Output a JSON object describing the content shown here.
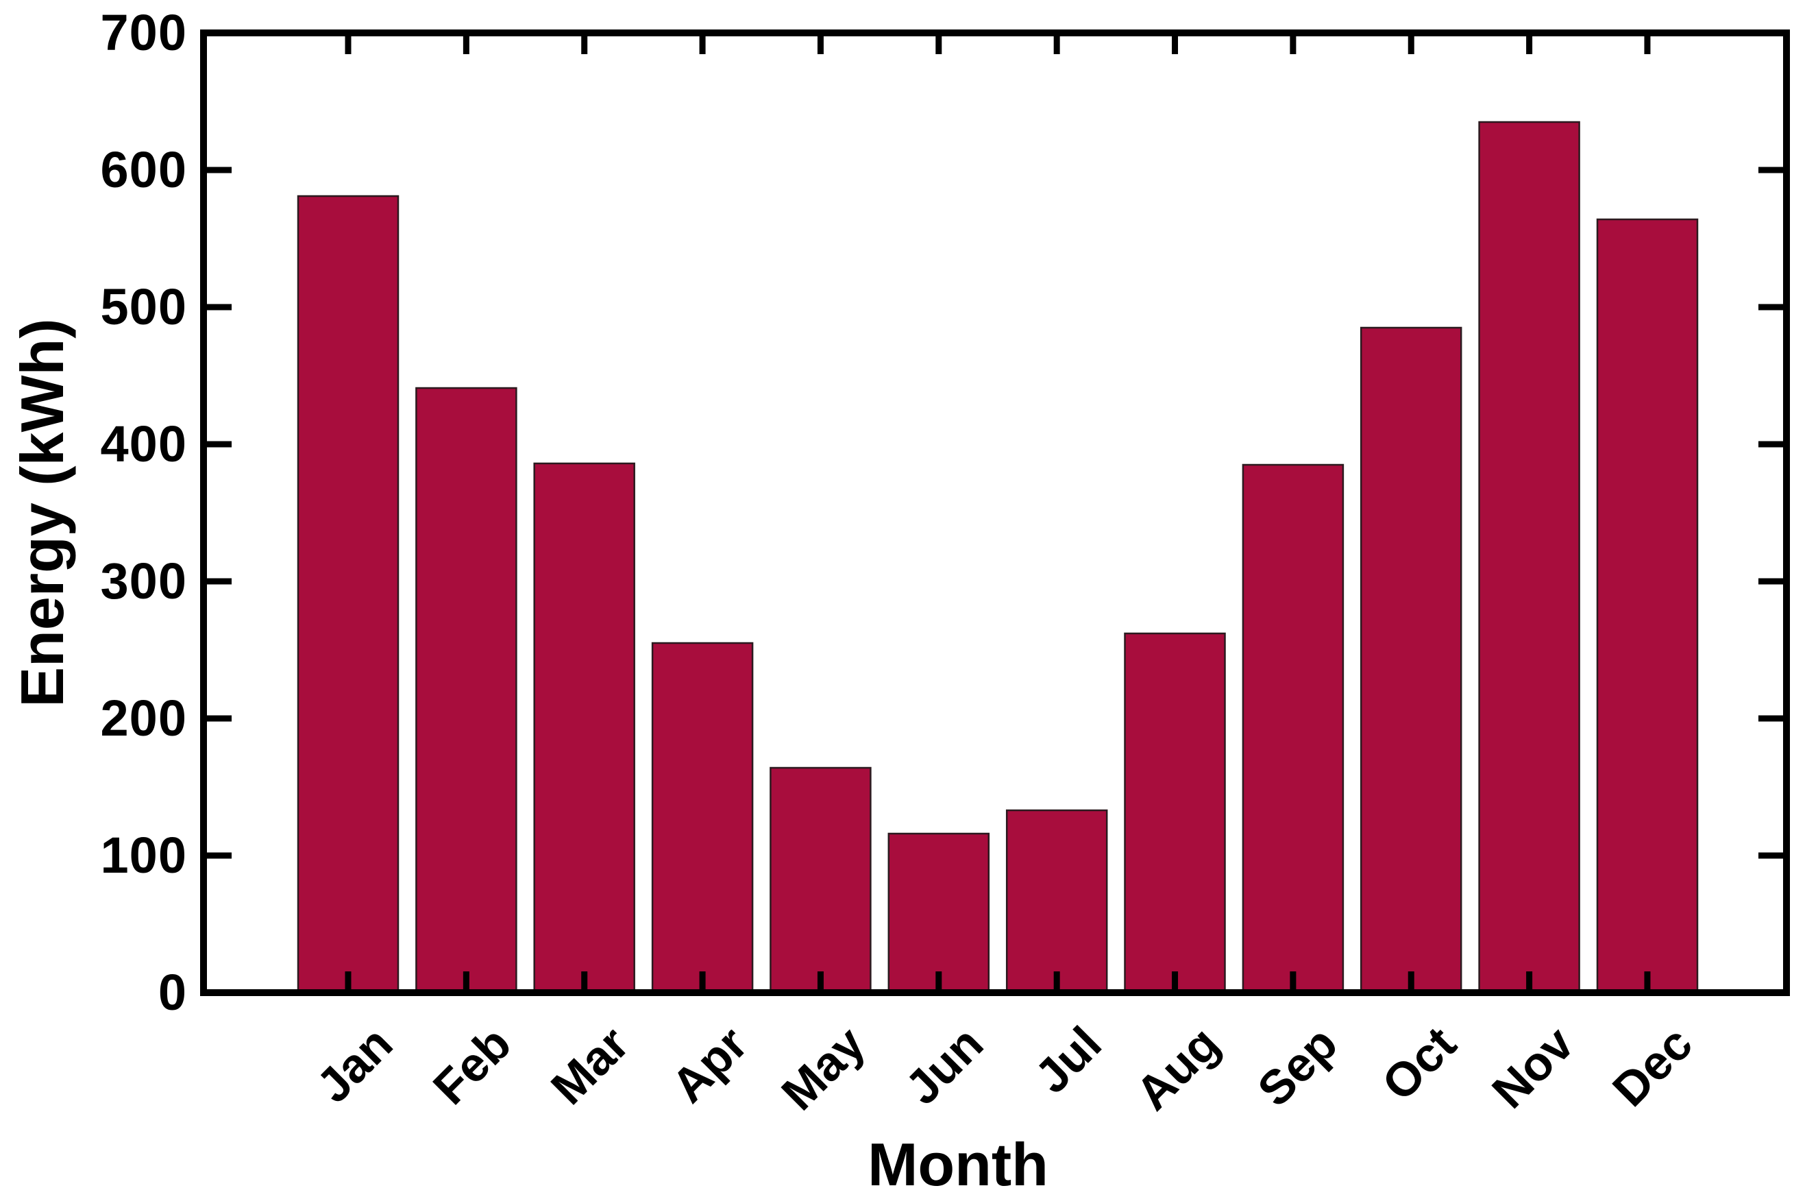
{
  "figure": {
    "background_color": "#ffffff",
    "bar_fill_color": "#a80d3d",
    "bar_edge_color": "#2b1a1f",
    "axis_line_color": "#000000",
    "text_color": "#000000"
  },
  "chart_data": {
    "type": "bar",
    "title": "",
    "categories": [
      "Jan",
      "Feb",
      "Mar",
      "Apr",
      "May",
      "Jun",
      "Jul",
      "Aug",
      "Sep",
      "Oct",
      "Nov",
      "Dec"
    ],
    "values": [
      581,
      441,
      386,
      255,
      164,
      116,
      133,
      262,
      385,
      485,
      635,
      564
    ],
    "xlabel": "Month",
    "ylabel": "Energy (kWh)",
    "ylim": [
      0,
      700
    ],
    "yticks": [
      0,
      100,
      200,
      300,
      400,
      500,
      600,
      700
    ],
    "grid": "off",
    "legend": "none",
    "xtick_rotation_deg": 45,
    "units": "kWh"
  }
}
